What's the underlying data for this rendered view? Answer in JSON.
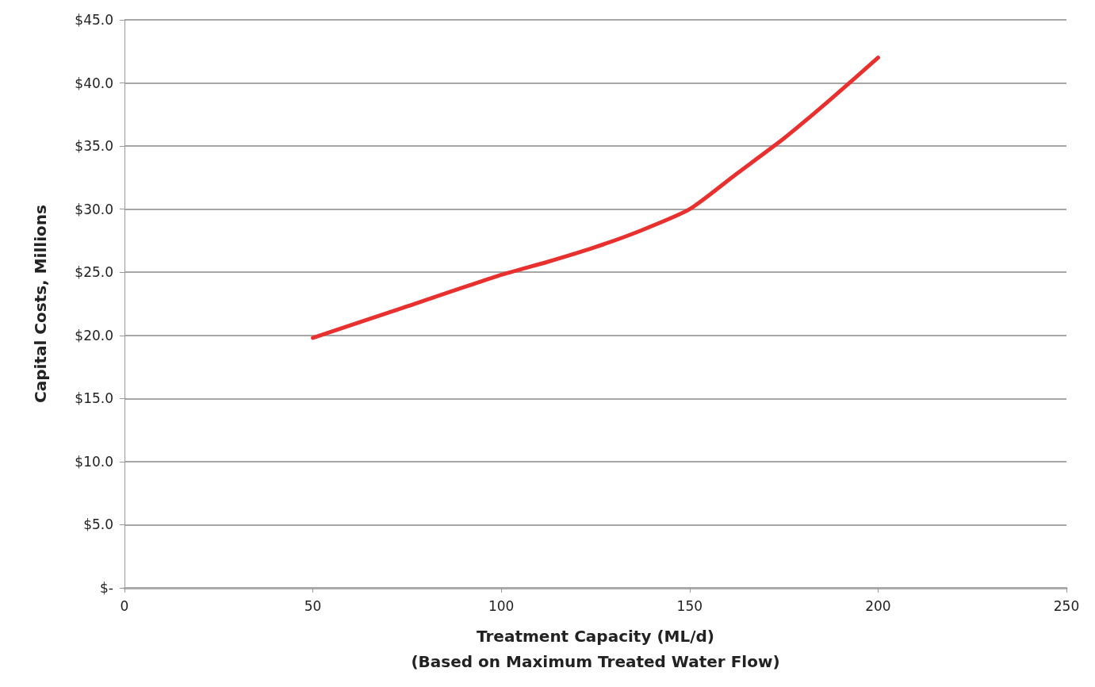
{
  "chart_data": {
    "type": "line",
    "xlabel": "Treatment Capacity (ML/d)\n(Based on Maximum Treated Water Flow)",
    "ylabel": "Capital Costs, Millions",
    "x": [
      50,
      75,
      100,
      112,
      125,
      137,
      150,
      162,
      175,
      187,
      200
    ],
    "series": [
      {
        "color": "#e8312f",
        "values": [
          19.8,
          22.3,
          24.8,
          25.8,
          27.0,
          28.3,
          30.0,
          32.7,
          35.6,
          38.6,
          42.0
        ]
      }
    ],
    "xlim": [
      0,
      250
    ],
    "xticks": [
      0,
      50,
      100,
      150,
      200,
      250
    ],
    "ylim": [
      0,
      45
    ],
    "yticks": [
      {
        "value": 0,
        "label": "$-"
      },
      {
        "value": 5,
        "label": "$5.0"
      },
      {
        "value": 10,
        "label": "$10.0"
      },
      {
        "value": 15,
        "label": "$15.0"
      },
      {
        "value": 20,
        "label": "$20.0"
      },
      {
        "value": 25,
        "label": "$25.0"
      },
      {
        "value": 30,
        "label": "$30.0"
      },
      {
        "value": 35,
        "label": "$35.0"
      },
      {
        "value": 40,
        "label": "$40.0"
      },
      {
        "value": 45,
        "label": "$45.0"
      }
    ],
    "grid": "y",
    "marker": "none",
    "line_style": "solid"
  }
}
